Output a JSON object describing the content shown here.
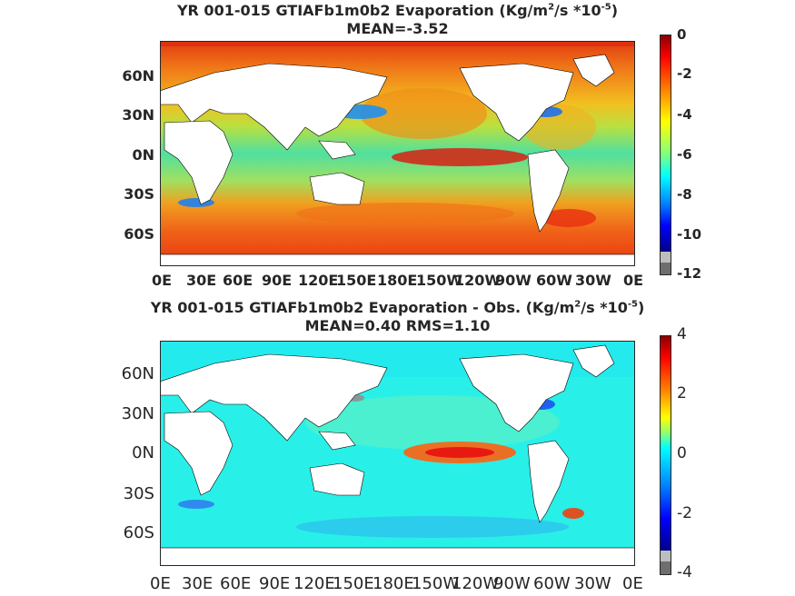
{
  "panel_top": {
    "title_prefix": "YR 001-015 GTIAFb1m0b2  Evaporation (Kg/m",
    "title_sup1": "2",
    "title_mid": "/s *10",
    "title_sup2": "-5",
    "title_suffix": ")",
    "subtitle": "MEAN=-3.52",
    "y_ticks": [
      "60N",
      "30N",
      "0N",
      "30S",
      "60S"
    ],
    "x_ticks": [
      "0E",
      "30E",
      "60E",
      "90E",
      "120E",
      "150E",
      "180E",
      "150W",
      "120W",
      "90W",
      "60W",
      "30W",
      "0E"
    ],
    "colorbar_ticks": [
      "0",
      "-2",
      "-4",
      "-6",
      "-8",
      "-10",
      "-12"
    ]
  },
  "panel_bottom": {
    "title_prefix": "YR 001-015 GTIAFb1m0b2 Evaporation - Obs. (Kg/m",
    "title_sup1": "2",
    "title_mid": "/s *10",
    "title_sup2": "-5",
    "title_suffix": ")",
    "subtitle": "MEAN=0.40   RMS=1.10",
    "y_ticks": [
      "60N",
      "30N",
      "0N",
      "30S",
      "60S"
    ],
    "x_ticks": [
      "0E",
      "30E",
      "60E",
      "90E",
      "120E",
      "150E",
      "180E",
      "150W",
      "120W",
      "90W",
      "60W",
      "30W",
      "0E"
    ],
    "colorbar_ticks": [
      "4",
      "2",
      "0",
      "-2",
      "-4"
    ]
  },
  "colors": {
    "jet_top": "#cc0000",
    "jet_bottom": "#00008b",
    "land": "#ffffff",
    "missing": "#bdbdbd"
  }
}
